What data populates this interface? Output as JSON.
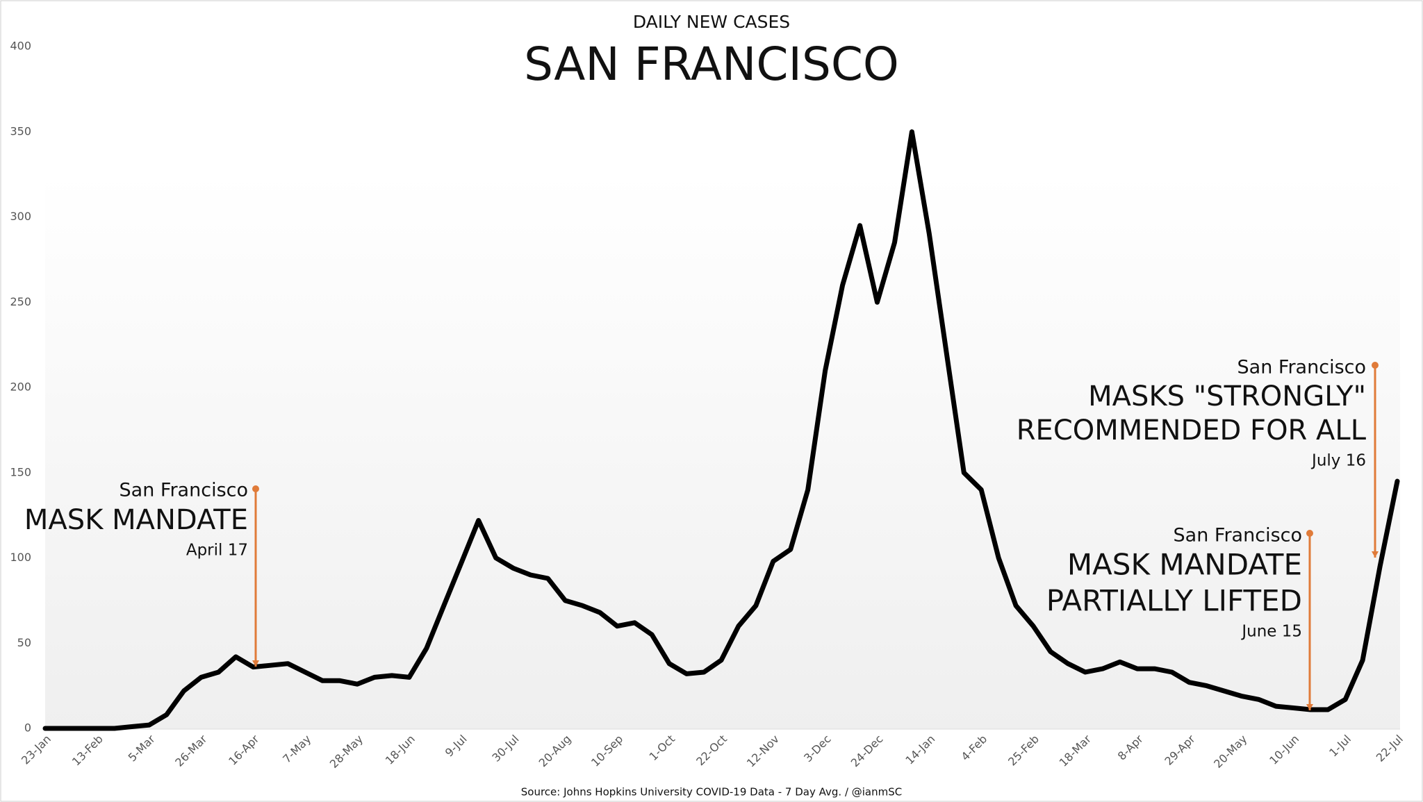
{
  "chart_data": {
    "type": "line",
    "subtitle": "DAILY NEW CASES",
    "title": "SAN FRANCISCO",
    "source": "Source: Johns Hopkins University COVID-19 Data - 7 Day Avg. / @ianmSC",
    "categories": [
      "23-Jan",
      null,
      null,
      "13-Feb",
      null,
      null,
      "5-Mar",
      null,
      null,
      "26-Mar",
      null,
      null,
      "16-Apr",
      null,
      null,
      "7-May",
      null,
      null,
      "28-May",
      null,
      null,
      "18-Jun",
      null,
      null,
      "9-Jul",
      null,
      null,
      "30-Jul",
      null,
      null,
      "20-Aug",
      null,
      null,
      "10-Sep",
      null,
      null,
      "1-Oct",
      null,
      null,
      "22-Oct",
      null,
      null,
      "12-Nov",
      null,
      null,
      "3-Dec",
      null,
      null,
      "24-Dec",
      null,
      null,
      "14-Jan",
      null,
      null,
      "4-Feb",
      null,
      null,
      "25-Feb",
      null,
      null,
      "18-Mar",
      null,
      null,
      "8-Apr",
      null,
      null,
      "29-Apr",
      null,
      null,
      "20-May",
      null,
      null,
      "10-Jun",
      null,
      null,
      "1-Jul",
      null,
      null,
      "22-Jul"
    ],
    "values": [
      0,
      0,
      0,
      0,
      0,
      1,
      2,
      8,
      22,
      30,
      33,
      42,
      36,
      37,
      38,
      33,
      28,
      28,
      26,
      30,
      31,
      30,
      47,
      72,
      97,
      122,
      100,
      94,
      90,
      88,
      75,
      72,
      68,
      60,
      62,
      55,
      38,
      32,
      33,
      40,
      60,
      72,
      98,
      105,
      140,
      210,
      260,
      295,
      250,
      285,
      350,
      290,
      220,
      150,
      140,
      100,
      72,
      60,
      45,
      38,
      33,
      35,
      39,
      35,
      35,
      33,
      27,
      25,
      22,
      19,
      17,
      13,
      12,
      11,
      11,
      17,
      40,
      95,
      145
    ],
    "color": "#000000",
    "ylim": [
      0,
      400
    ],
    "yticks": [
      0,
      50,
      100,
      150,
      200,
      250,
      300,
      350,
      400
    ],
    "grid": false,
    "annotations": [
      {
        "place": "San Francisco",
        "lines": [
          "MASK MANDATE"
        ],
        "date": "April 17"
      },
      {
        "place": "San Francisco",
        "lines": [
          "MASK MANDATE",
          "PARTIALLY LIFTED"
        ],
        "date": "June 15"
      },
      {
        "place": "San Francisco",
        "lines": [
          "MASKS \"STRONGLY\"",
          "RECOMMENDED FOR ALL"
        ],
        "date": "July 16"
      }
    ]
  }
}
